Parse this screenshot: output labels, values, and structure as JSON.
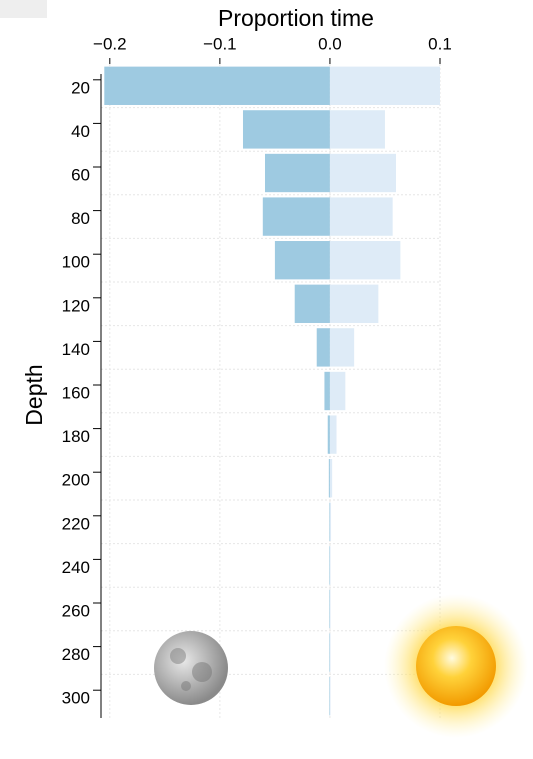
{
  "chart_data": {
    "type": "diverging-bar",
    "title": "Proportion time",
    "y_label": "Depth",
    "categories": [
      "20",
      "40",
      "60",
      "80",
      "100",
      "120",
      "140",
      "160",
      "180",
      "200",
      "220",
      "240",
      "260",
      "280",
      "300"
    ],
    "series": [
      {
        "color": "#9ecae1",
        "values": [
          -0.205,
          -0.079,
          -0.059,
          -0.061,
          -0.05,
          -0.032,
          -0.012,
          -0.005,
          -0.002,
          -0.001,
          -0.0005,
          -0.0005,
          -0.0005,
          -0.0005,
          -0.0005
        ]
      },
      {
        "color": "#deebf7",
        "values": [
          0.1,
          0.05,
          0.06,
          0.057,
          0.064,
          0.044,
          0.022,
          0.014,
          0.006,
          0.002,
          0.001,
          0.0005,
          0.0005,
          0.0005,
          0.0005
        ]
      }
    ],
    "xlim": [
      -0.208,
      0.1
    ],
    "xticks": [
      {
        "value": -0.2,
        "label": "−0.2"
      },
      {
        "value": -0.1,
        "label": "−0.1"
      },
      {
        "value": 0,
        "label": "0.0"
      },
      0.1
    ],
    "grid": true
  }
}
